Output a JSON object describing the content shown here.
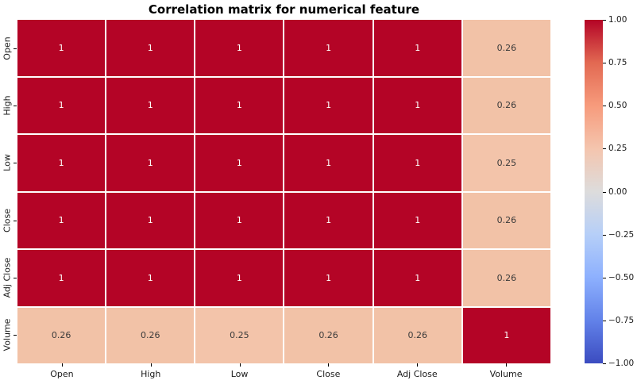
{
  "chart_data": {
    "type": "heatmap",
    "title": "Correlation matrix for numerical feature",
    "categories": [
      "Open",
      "High",
      "Low",
      "Close",
      "Adj Close",
      "Volume"
    ],
    "values": [
      [
        1,
        1,
        1,
        1,
        1,
        0.26
      ],
      [
        1,
        1,
        1,
        1,
        1,
        0.26
      ],
      [
        1,
        1,
        1,
        1,
        1,
        0.25
      ],
      [
        1,
        1,
        1,
        1,
        1,
        0.26
      ],
      [
        1,
        1,
        1,
        1,
        1,
        0.26
      ],
      [
        0.26,
        0.26,
        0.25,
        0.26,
        0.26,
        1
      ]
    ],
    "labels": [
      [
        "1",
        "1",
        "1",
        "1",
        "1",
        "0.26"
      ],
      [
        "1",
        "1",
        "1",
        "1",
        "1",
        "0.26"
      ],
      [
        "1",
        "1",
        "1",
        "1",
        "1",
        "0.25"
      ],
      [
        "1",
        "1",
        "1",
        "1",
        "1",
        "0.26"
      ],
      [
        "1",
        "1",
        "1",
        "1",
        "1",
        "0.26"
      ],
      [
        "0.26",
        "0.26",
        "0.25",
        "0.26",
        "0.26",
        "1"
      ]
    ],
    "colormap": "coolwarm",
    "vmin": -1,
    "vmax": 1,
    "grid": false,
    "cell_colors": {
      "1": "#b40426",
      "0.26": "#f2c2a7",
      "0.25": "#f3c4aa"
    },
    "text_colors": {
      "on_dark": "#ffffff",
      "on_light": "#3a3a3a"
    },
    "colorbar": {
      "position": "right",
      "tick_labels": [
        "1.00",
        "0.75",
        "0.50",
        "0.25",
        "0.00",
        "−0.25",
        "−0.50",
        "−0.75",
        "−1.00"
      ],
      "tick_values": [
        1.0,
        0.75,
        0.5,
        0.25,
        0.0,
        -0.25,
        -0.5,
        -0.75,
        -1.0
      ],
      "gradient_top_to_bottom": [
        "#b40426",
        "#e26952",
        "#f79b7c",
        "#f4c5ae",
        "#dddcdc",
        "#b6cff8",
        "#8db0fe",
        "#6282e9",
        "#3b4cc0"
      ]
    }
  }
}
